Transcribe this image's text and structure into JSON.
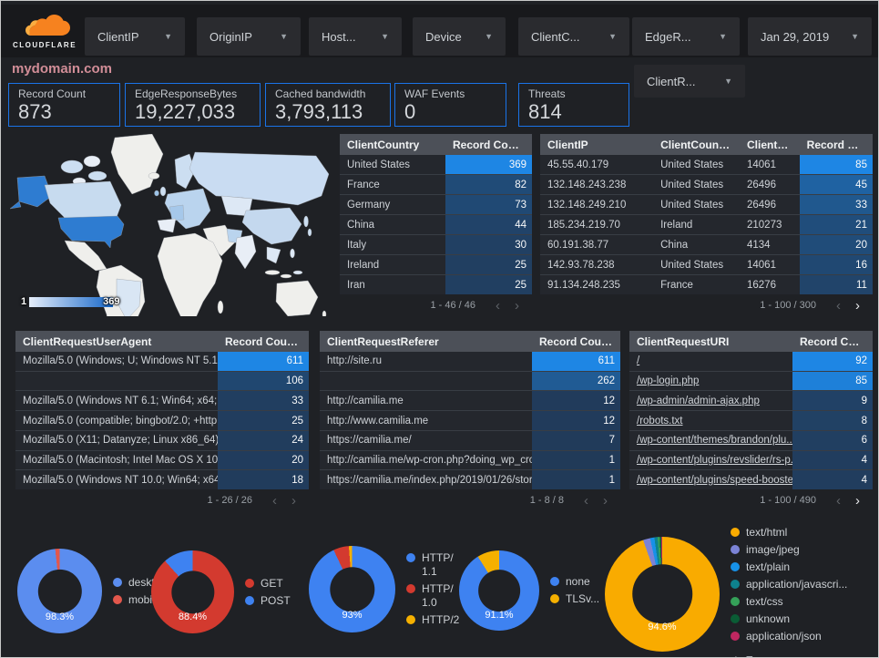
{
  "header": {
    "brand": "CLOUDFLARE",
    "site_title": "mydomain.com",
    "filters": [
      "ClientIP",
      "OriginIP",
      "Host...",
      "Device",
      "ClientC...",
      "EdgeR..."
    ],
    "date_filter": "Jan 29, 2019",
    "filter_row2": "ClientR...",
    "caret": "▼"
  },
  "colors": {
    "accent_border": "#1a73e8",
    "heat_low": "#213a58",
    "heat_high": "#1e86e4",
    "map_low": "#e6eefa",
    "map_high": "#1667c9",
    "title_pink": "#d18d97"
  },
  "scorecards": [
    {
      "label": "Record Count",
      "value": "873"
    },
    {
      "label": "EdgeResponseBytes",
      "value": "19,227,033"
    },
    {
      "label": "Cached bandwidth",
      "value": "3,793,113"
    },
    {
      "label": "WAF Events",
      "value": "0"
    },
    {
      "label": "Threats",
      "value": "814"
    }
  ],
  "map": {
    "legend_min": "1",
    "legend_max": "369"
  },
  "tables": [
    {
      "name": "client-country",
      "columns": [
        "ClientCountry",
        "Record Count"
      ],
      "value_col_width": 95,
      "max": 369,
      "rows": [
        [
          "United States",
          369
        ],
        [
          "France",
          82
        ],
        [
          "Germany",
          73
        ],
        [
          "China",
          44
        ],
        [
          "Italy",
          30
        ],
        [
          "Ireland",
          25
        ],
        [
          "Iran",
          25
        ]
      ],
      "pagination": "1 - 46 / 46",
      "prev_enabled": false,
      "next_enabled": false,
      "links": false
    },
    {
      "name": "client-ip",
      "columns": [
        "ClientIP",
        "ClientCountry",
        "ClientASN",
        "Record Count"
      ],
      "col_widths": [
        "34%",
        "26%",
        "18%",
        "22%"
      ],
      "max": 85,
      "rows": [
        [
          "45.55.40.179",
          "United States",
          "14061",
          85
        ],
        [
          "132.148.243.238",
          "United States",
          "26496",
          45
        ],
        [
          "132.148.249.210",
          "United States",
          "26496",
          33
        ],
        [
          "185.234.219.70",
          "Ireland",
          "210273",
          21
        ],
        [
          "60.191.38.77",
          "China",
          "4134",
          20
        ],
        [
          "142.93.78.238",
          "United States",
          "14061",
          16
        ],
        [
          "91.134.248.235",
          "France",
          "16276",
          11
        ]
      ],
      "pagination": "1 - 100 / 300",
      "prev_enabled": false,
      "next_enabled": true,
      "links": false
    },
    {
      "name": "user-agent",
      "columns": [
        "ClientRequestUserAgent",
        "Record Count"
      ],
      "value_col_width": 100,
      "max": 611,
      "rows": [
        [
          "Mozilla/5.0 (Windows; U; Windows NT 5.1; en-U...",
          611
        ],
        [
          "",
          106
        ],
        [
          "Mozilla/5.0 (Windows NT 6.1; Win64; x64; rv:64...",
          33
        ],
        [
          "Mozilla/5.0 (compatible; bingbot/2.0; +http://w...",
          25
        ],
        [
          "Mozilla/5.0 (X11; Datanyze; Linux x86_64) Appl...",
          24
        ],
        [
          "Mozilla/5.0 (Macintosh; Intel Mac OS X 10.11; r...",
          20
        ],
        [
          "Mozilla/5.0 (Windows NT 10.0; Win64; x64) App...",
          18
        ]
      ],
      "pagination": "1 - 26 / 26",
      "prev_enabled": false,
      "next_enabled": false,
      "links": false
    },
    {
      "name": "referer",
      "columns": [
        "ClientRequestReferer",
        "Record Count"
      ],
      "value_col_width": 97,
      "max": 611,
      "rows": [
        [
          "http://site.ru",
          611
        ],
        [
          "",
          262
        ],
        [
          "http://camilia.me",
          12
        ],
        [
          "http://www.camilia.me",
          12
        ],
        [
          "https://camilia.me/",
          7
        ],
        [
          "http://camilia.me/wp-cron.php?doing_wp_cron...",
          1
        ],
        [
          "https://camilia.me/index.php/2019/01/26/stor...",
          1
        ]
      ],
      "pagination": "1 - 8 / 8",
      "prev_enabled": false,
      "next_enabled": false,
      "links": false
    },
    {
      "name": "uri",
      "columns": [
        "ClientRequestURI",
        "Record Count"
      ],
      "value_col_width": 88,
      "max": 92,
      "rows": [
        [
          "/",
          92
        ],
        [
          "/wp-login.php",
          85
        ],
        [
          "/wp-admin/admin-ajax.php",
          9
        ],
        [
          "/robots.txt",
          8
        ],
        [
          "/wp-content/themes/brandon/plu...",
          6
        ],
        [
          "/wp-content/plugins/revslider/rs-p...",
          4
        ],
        [
          "/wp-content/plugins/speed-booste...",
          4
        ]
      ],
      "pagination": "1 - 100 / 490",
      "prev_enabled": false,
      "next_enabled": true,
      "links": true
    }
  ],
  "donuts": [
    {
      "name": "device",
      "size": 93,
      "label": "98.3%",
      "legend_narrow": false,
      "slices": [
        {
          "label": "deskt...",
          "value": 98.3,
          "color": "#5b8def"
        },
        {
          "label": "mobile",
          "value": 1.7,
          "color": "#e2574c"
        }
      ]
    },
    {
      "name": "method",
      "size": 91,
      "label": "88.4%",
      "legend_narrow": false,
      "slices": [
        {
          "label": "GET",
          "value": 88.4,
          "color": "#d33a2f"
        },
        {
          "label": "POST",
          "value": 11.6,
          "color": "#3e82f1"
        }
      ]
    },
    {
      "name": "http",
      "size": 95,
      "label": "93%",
      "legend_narrow": true,
      "slices": [
        {
          "label": "HTTP/1.1",
          "value": 93,
          "color": "#3e82f1"
        },
        {
          "label": "HTTP/1.0",
          "value": 5.8,
          "color": "#d33a2f"
        },
        {
          "label": "HTTP/2",
          "value": 1.2,
          "color": "#f5b000"
        }
      ]
    },
    {
      "name": "tls",
      "size": 88,
      "label": "91.1%",
      "legend_narrow": false,
      "slices": [
        {
          "label": "none",
          "value": 91.1,
          "color": "#3e82f1"
        },
        {
          "label": "TLSv...",
          "value": 8.9,
          "color": "#f5b000"
        }
      ]
    },
    {
      "name": "content",
      "size": 126,
      "label": "94.6%",
      "legend_narrow": false,
      "legend_scroll": true,
      "slices": [
        {
          "label": "text/html",
          "value": 94.6,
          "color": "#f9ab00"
        },
        {
          "label": "image/jpeg",
          "value": 2.0,
          "color": "#7b83d6"
        },
        {
          "label": "text/plain",
          "value": 1.2,
          "color": "#1791e8"
        },
        {
          "label": "application/javascri...",
          "value": 0.9,
          "color": "#0e828e"
        },
        {
          "label": "text/css",
          "value": 0.6,
          "color": "#35a159"
        },
        {
          "label": "unknown",
          "value": 0.4,
          "color": "#0a5c35"
        },
        {
          "label": "application/json",
          "value": 0.3,
          "color": "#bf2760"
        }
      ]
    }
  ]
}
